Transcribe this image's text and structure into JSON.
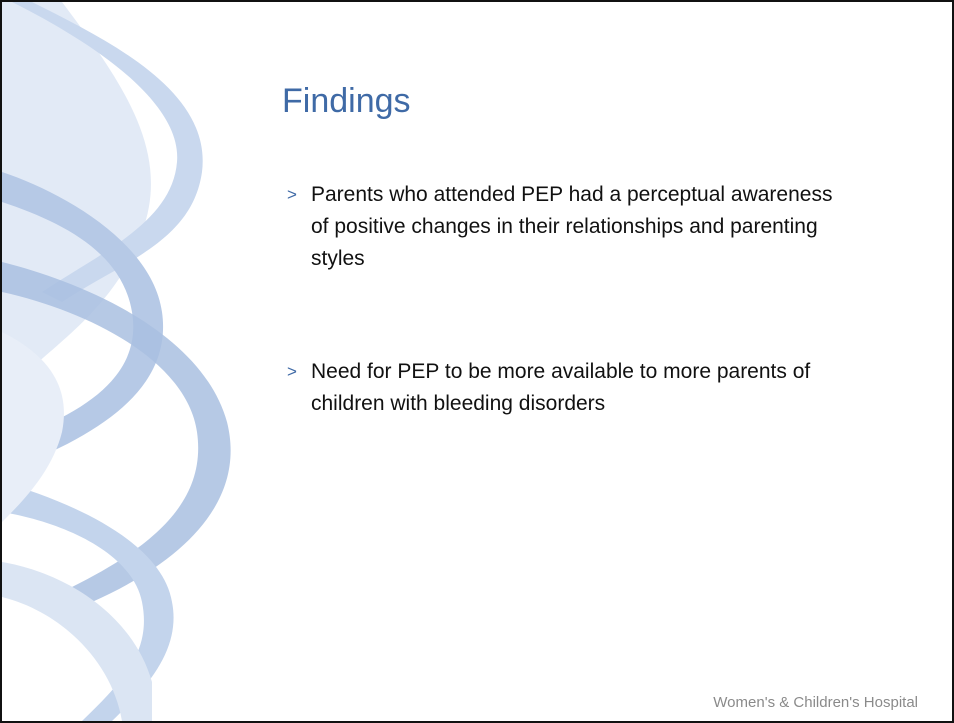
{
  "slide": {
    "title": "Findings",
    "bullet_marker": ">",
    "bullets": [
      "Parents who attended PEP had a perceptual awareness of positive changes in their relationships and parenting styles",
      "Need for PEP to be more available to more parents of children with bleeding disorders"
    ],
    "footer": "Women's & Children's Hospital"
  }
}
